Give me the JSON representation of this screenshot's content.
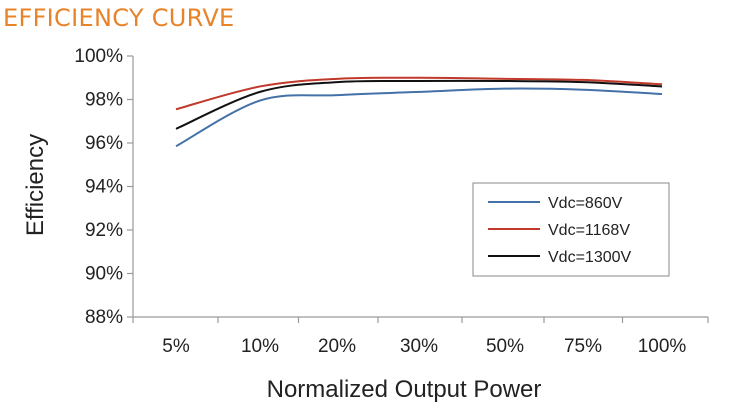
{
  "header": {
    "title": "EFFICIENCY CURVE",
    "title_color": "#E8832A"
  },
  "chart_data": {
    "type": "line",
    "title": "EFFICIENCY CURVE",
    "xlabel": "Normalized Output Power",
    "ylabel": "Efficiency",
    "categories": [
      "5%",
      "10%",
      "20%",
      "30%",
      "50%",
      "75%",
      "100%"
    ],
    "yticks": [
      "88%",
      "90%",
      "92%",
      "94%",
      "96%",
      "98%",
      "100%"
    ],
    "ylim": [
      88,
      100
    ],
    "grid": {
      "x": false,
      "y": false
    },
    "legend_position": "right",
    "series": [
      {
        "name": "Vdc=860V",
        "color": "#4472A8",
        "values": [
          95.85,
          97.95,
          98.2,
          98.35,
          98.5,
          98.45,
          98.25
        ]
      },
      {
        "name": "Vdc=1168V",
        "color": "#C0392B",
        "values": [
          97.55,
          98.6,
          98.95,
          99.0,
          98.95,
          98.9,
          98.7
        ]
      },
      {
        "name": "Vdc=1300V",
        "color": "#111111",
        "values": [
          96.65,
          98.35,
          98.8,
          98.85,
          98.85,
          98.8,
          98.6
        ]
      }
    ]
  }
}
